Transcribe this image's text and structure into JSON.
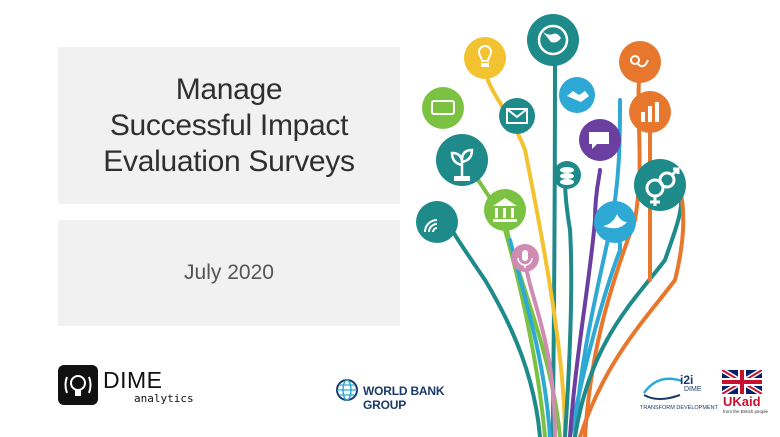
{
  "slide": {
    "title_lines": [
      "Manage",
      "Successful Impact",
      "Evaluation Surveys"
    ],
    "date": "July 2020"
  },
  "logos": {
    "dime": {
      "name": "DIME",
      "sub": "analytics"
    },
    "world_bank": {
      "name": "WORLD BANK GROUP"
    },
    "i2i": {
      "name": "i2i",
      "sub1": "DIME",
      "sub2": "TRANSFORM DEVELOPMENT"
    },
    "ukaid": {
      "name": "UKaid",
      "sub": "from the British people"
    }
  },
  "colors": {
    "teal": "#1e8a8a",
    "green": "#7cc242",
    "yellow": "#f2c230",
    "orange": "#e8772e",
    "blue": "#2ea9d6",
    "purple": "#6b3fa0",
    "pink": "#d08bb3"
  },
  "icons": [
    "globe-icon",
    "lightbulb-icon",
    "location-icon",
    "phone-icon",
    "handshake-icon",
    "chart-icon",
    "mail-icon",
    "chat-icon",
    "plant-icon",
    "coins-icon",
    "gender-icon",
    "wifi-icon",
    "bank-icon",
    "dove-icon",
    "microphone-icon"
  ]
}
